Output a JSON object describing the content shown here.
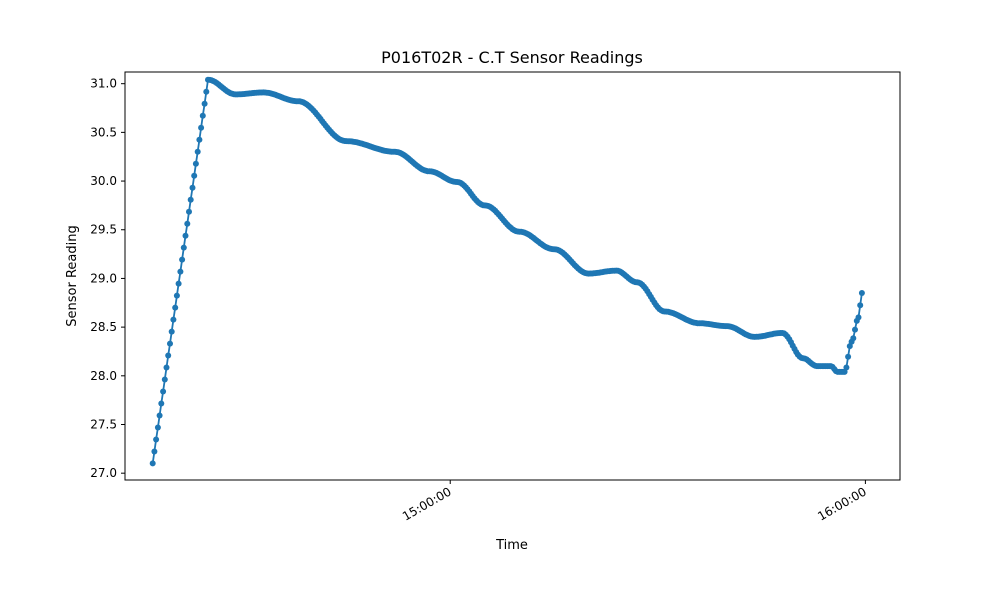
{
  "chart_data": {
    "type": "line",
    "title": "P016T02R - C.T Sensor Readings",
    "xlabel": "Time",
    "ylabel": "Sensor Reading",
    "x_ticks": [
      "15:00:00",
      "16:00:00"
    ],
    "x_tick_values": [
      "15:00:00",
      "16:00:00"
    ],
    "y_ticks": [
      "27.0",
      "27.5",
      "28.0",
      "28.5",
      "29.0",
      "29.5",
      "30.0",
      "30.5",
      "31.0"
    ],
    "xlim": [
      "14:13:00",
      "16:05:00"
    ],
    "ylim": [
      26.93,
      31.12
    ],
    "grid": false,
    "marker": "circle",
    "color": "#1f77b4",
    "series": [
      {
        "x": [
          "14:17:00",
          "14:25:00",
          "14:29:00",
          "14:33:00",
          "14:38:00",
          "14:45:00",
          "14:52:00",
          "14:57:00",
          "15:01:00",
          "15:05:00",
          "15:10:00",
          "15:15:00",
          "15:20:00",
          "15:24:00",
          "15:27:00",
          "15:31:00",
          "15:36:00",
          "15:40:00",
          "15:44:00",
          "15:48:00",
          "15:51:00",
          "15:53:00",
          "15:55:00",
          "15:56:00",
          "15:57:00",
          "15:58:00",
          "15:59:00",
          "15:59:30"
        ],
        "y": [
          27.1,
          31.04,
          30.89,
          30.91,
          30.82,
          30.41,
          30.3,
          30.1,
          29.99,
          29.75,
          29.48,
          29.3,
          29.05,
          29.08,
          28.96,
          28.66,
          28.54,
          28.51,
          28.4,
          28.44,
          28.18,
          28.1,
          28.1,
          28.04,
          28.04,
          28.35,
          28.6,
          28.85
        ]
      }
    ]
  }
}
